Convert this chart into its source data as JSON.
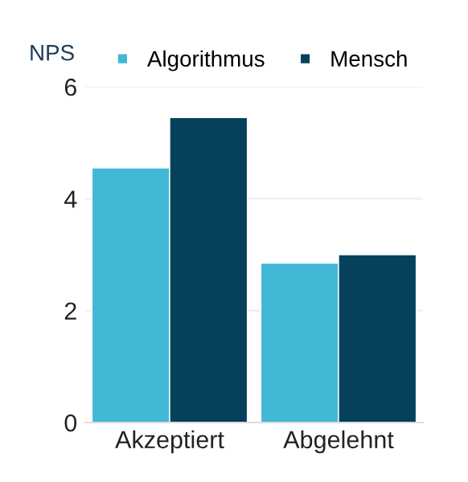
{
  "chart_data": {
    "type": "bar",
    "ylabel": "NPS",
    "categories": [
      "Akzeptiert",
      "Abgelehnt"
    ],
    "series": [
      {
        "name": "Algorithmus",
        "color": "#41b8d5",
        "values": [
          4.55,
          2.85
        ]
      },
      {
        "name": "Mensch",
        "color": "#06415c",
        "values": [
          5.45,
          3.0
        ]
      }
    ],
    "ylim": [
      0,
      6
    ],
    "yticks": [
      0,
      2,
      4,
      6
    ],
    "grid": "y",
    "legend": "top"
  }
}
